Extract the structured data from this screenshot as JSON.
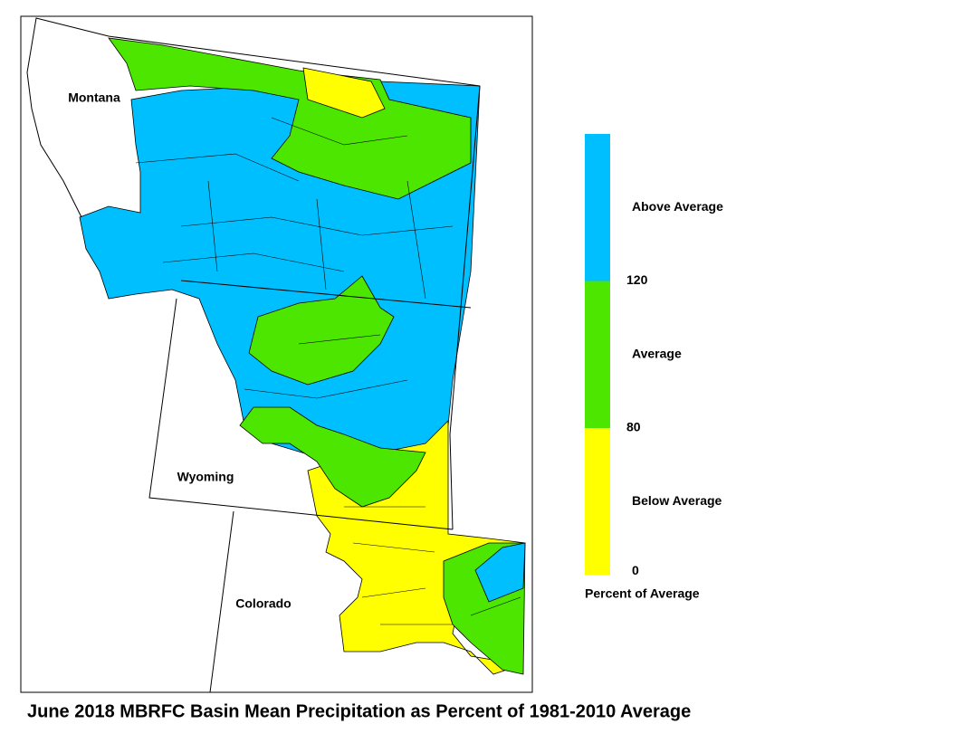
{
  "map": {
    "title": "June 2018 MBRFC Basin Mean Precipitation as Percent of 1981-2010 Average",
    "states": [
      "Montana",
      "Wyoming",
      "Colorado"
    ]
  },
  "legend": {
    "title": "Percent of Average",
    "classes": [
      {
        "label": "Above Average",
        "color": "#00bfff"
      },
      {
        "label": "Average",
        "color": "#4ce600"
      },
      {
        "label": "Below Average",
        "color": "#ffff00"
      }
    ],
    "breaks": [
      120,
      80,
      0
    ]
  }
}
